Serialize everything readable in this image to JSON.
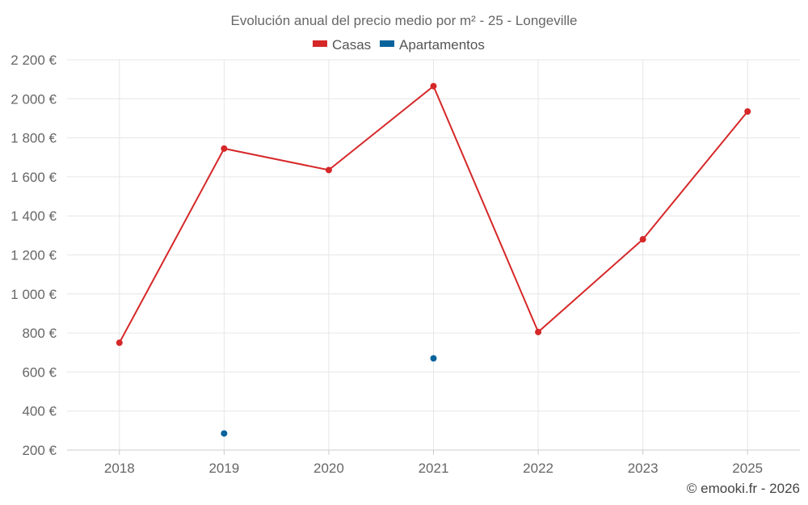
{
  "chart_data": {
    "type": "line",
    "title": "Evolución anual del precio medio por m² - 25 - Longeville",
    "categories": [
      "2018",
      "2019",
      "2020",
      "2021",
      "2022",
      "2023",
      "2025"
    ],
    "series": [
      {
        "name": "Casas",
        "color": "#d62728",
        "values": [
          750,
          1745,
          1635,
          2065,
          805,
          1280,
          1935
        ]
      },
      {
        "name": "Apartamentos",
        "color": "#08639c",
        "values": [
          null,
          285,
          null,
          670,
          null,
          null,
          null
        ]
      }
    ],
    "y_ticks": [
      200,
      400,
      600,
      800,
      1000,
      1200,
      1400,
      1600,
      1800,
      2000,
      2200
    ],
    "y_tick_labels": [
      "200 €",
      "400 €",
      "600 €",
      "800 €",
      "1 000 €",
      "1 200 €",
      "1 400 €",
      "1 600 €",
      "1 800 €",
      "2 000 €",
      "2 200 €"
    ],
    "ylim": [
      200,
      2200
    ],
    "xlabel": "",
    "ylabel": "",
    "legend_position": "top-center",
    "grid": true
  },
  "credit": "© emooki.fr - 2026"
}
